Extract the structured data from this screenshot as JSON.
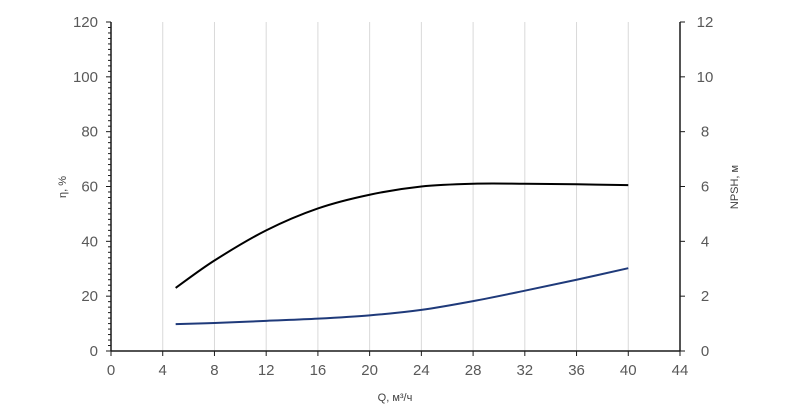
{
  "chart_data": {
    "type": "line",
    "title": "",
    "xlabel": "Q, м³/ч",
    "ylabel_left": "η, %",
    "ylabel_right": "NPSH, м",
    "xlim": [
      0,
      44
    ],
    "ylim_left": [
      0,
      120
    ],
    "ylim_right": [
      0,
      12
    ],
    "x_ticks": [
      0,
      4,
      8,
      12,
      16,
      20,
      24,
      28,
      32,
      36,
      40,
      44
    ],
    "y_left_ticks": [
      0,
      20,
      40,
      60,
      80,
      100,
      120
    ],
    "y_right_ticks": [
      0,
      2,
      4,
      6,
      8,
      10,
      12
    ],
    "grid": "vertical",
    "legend": "none",
    "series": [
      {
        "axis": "left",
        "color": "#000000",
        "x": [
          5,
          8,
          12,
          16,
          20,
          24,
          28,
          32,
          36,
          40
        ],
        "values": [
          23,
          33,
          44,
          52,
          57,
          60,
          61,
          61,
          60.8,
          60.5
        ]
      },
      {
        "axis": "right",
        "color": "#1f3a7a",
        "x": [
          5,
          8,
          12,
          16,
          20,
          24,
          28,
          32,
          36,
          40
        ],
        "values": [
          0.98,
          1.02,
          1.1,
          1.18,
          1.3,
          1.5,
          1.82,
          2.2,
          2.6,
          3.02
        ]
      }
    ]
  }
}
